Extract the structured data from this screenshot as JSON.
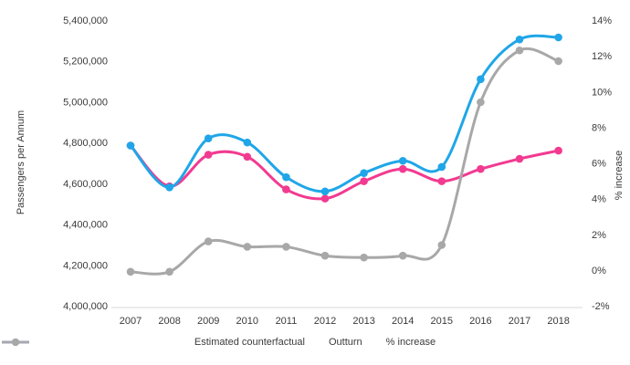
{
  "chart_data": {
    "type": "line",
    "title": "",
    "x": [
      "2007",
      "2008",
      "2009",
      "2010",
      "2011",
      "2012",
      "2013",
      "2014",
      "2015",
      "2016",
      "2017",
      "2018"
    ],
    "series": [
      {
        "name": "Estimated counterfactual",
        "axis": "left",
        "color": "#f23a90",
        "values": [
          4785000,
          4585000,
          4740000,
          4730000,
          4570000,
          4525000,
          4610000,
          4670000,
          4610000,
          4670000,
          4720000,
          4760000
        ]
      },
      {
        "name": "Outturn",
        "axis": "left",
        "color": "#20a6e8",
        "values": [
          4785000,
          4580000,
          4820000,
          4800000,
          4630000,
          4560000,
          4650000,
          4710000,
          4680000,
          5110000,
          5305000,
          5315000
        ]
      },
      {
        "name": "% increase",
        "axis": "right",
        "color": "#a8a8a8",
        "values": [
          -0.1,
          -0.1,
          1.6,
          1.3,
          1.3,
          0.8,
          0.7,
          0.8,
          1.4,
          9.4,
          12.3,
          11.7
        ]
      }
    ],
    "left_axis": {
      "label": "Passengers per Annum",
      "min": 4000000,
      "max": 5400000,
      "tick_labels": [
        "4,000,000",
        "4,200,000",
        "4,400,000",
        "4,600,000",
        "4,800,000",
        "5,000,000",
        "5,200,000",
        "5,400,000"
      ]
    },
    "right_axis": {
      "label": "% increase",
      "min": -2,
      "max": 14,
      "tick_labels": [
        "-2%",
        "0%",
        "2%",
        "4%",
        "6%",
        "8%",
        "10%",
        "12%",
        "14%"
      ]
    },
    "legend_position": "bottom",
    "grid": false
  }
}
